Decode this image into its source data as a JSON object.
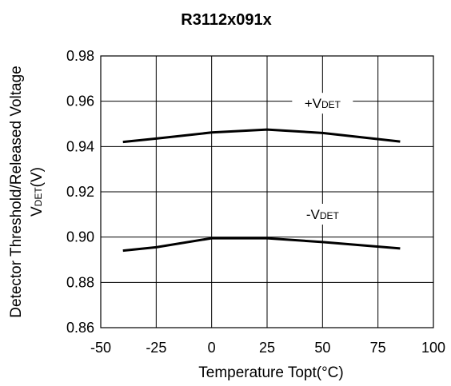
{
  "chart_data": {
    "type": "line",
    "title": "R3112x091x",
    "xlabel": "Temperature Topt(°C)",
    "ylabel_line1": "Detector Threshold/Released Voltage",
    "ylabel_line2_main": "V",
    "ylabel_line2_sub": "DET",
    "ylabel_line2_unit": "(V)",
    "xlim": [
      -50,
      100
    ],
    "ylim": [
      0.86,
      0.98
    ],
    "x_ticks": [
      -50,
      -25,
      0,
      25,
      50,
      75,
      100
    ],
    "x_tick_labels": [
      "-50",
      "-25",
      "0",
      "25",
      "50",
      "75",
      "100"
    ],
    "y_ticks": [
      0.86,
      0.88,
      0.9,
      0.92,
      0.94,
      0.96,
      0.98
    ],
    "y_tick_labels": [
      "0.86",
      "0.88",
      "0.90",
      "0.92",
      "0.94",
      "0.96",
      "0.98"
    ],
    "grid": true,
    "series": [
      {
        "label_main": "+V",
        "label_sub": "DET",
        "label_at": [
          50,
          0.957
        ],
        "x": [
          -40,
          -25,
          0,
          25,
          50,
          85
        ],
        "y": [
          0.942,
          0.9435,
          0.9462,
          0.9475,
          0.946,
          0.9422
        ]
      },
      {
        "label_main": "-V",
        "label_sub": "DET",
        "label_at": [
          50,
          0.908
        ],
        "x": [
          -40,
          -25,
          0,
          25,
          50,
          85
        ],
        "y": [
          0.894,
          0.8955,
          0.8995,
          0.8995,
          0.8978,
          0.895
        ]
      }
    ]
  }
}
